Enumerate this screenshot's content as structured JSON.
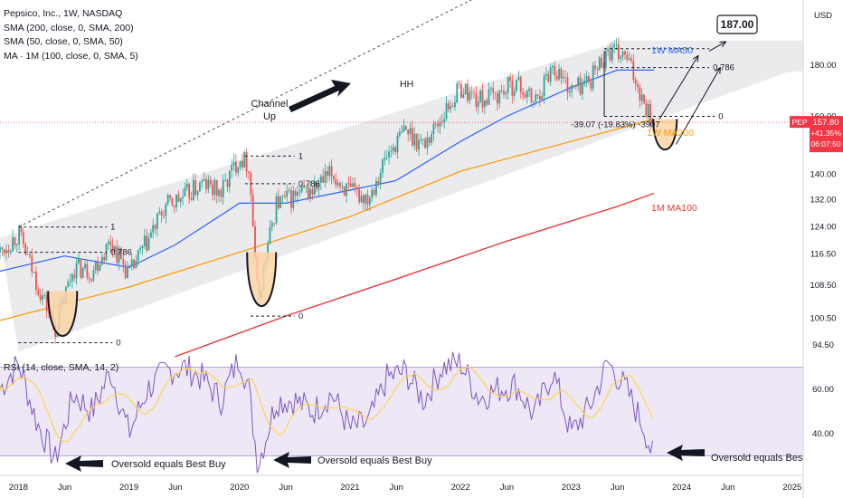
{
  "header": {
    "title": "Pepsico, Inc., 1W, NASDAQ",
    "indicators": [
      "SMA (200, close, 0, SMA, 200)",
      "SMA (50, close, 0, SMA, 50)",
      "MA · 1M (100, close, 0, SMA, 5)"
    ],
    "rsi_title": "RSI (14, close, SMA, 14, 2)"
  },
  "colors": {
    "candle_up": "#26a69a",
    "candle_down": "#ef5350",
    "sma50": "#2962ff",
    "sma200": "#ff9800",
    "ma100_1m": "#e53935",
    "channel_fill": "#e8e8ea",
    "rsi_line": "#7e57c2",
    "rsi_band": "#ede7f6",
    "rsi_sma": "#ffd54f",
    "price_badge": "#f23645",
    "bubble": "#fbd3a6"
  },
  "axis": {
    "currency": "USD",
    "price_ticks": [
      "94.50",
      "100.50",
      "108.50",
      "116.50",
      "124.00",
      "132.00",
      "140.00",
      "150.00",
      "160.00",
      "180.00"
    ],
    "rsi_ticks": [
      "40.00",
      "60.00"
    ],
    "time_ticks": [
      "2018",
      "Jun",
      "2019",
      "Jun",
      "2020",
      "Jun",
      "2021",
      "Jun",
      "2022",
      "Jun",
      "2023",
      "Jun",
      "2024",
      "Jun",
      "2025"
    ]
  },
  "price_badge": {
    "symbol": "PEP",
    "price": "157.80",
    "change": "+41.35%",
    "countdown": "06:07:50"
  },
  "annotations": {
    "channel": [
      "Channel",
      "Up"
    ],
    "hh": "HH",
    "target_box": "187.00",
    "ma50_label": "1W MA50",
    "ma200_label": "1W MA200",
    "ma100_label": "1M MA100",
    "drop_label": "-39.07 (-19.83%) -3907",
    "fib_one": "1",
    "fib_zero": "0",
    "fib_786": "0.786",
    "oversold": "Oversold equals Best Buy"
  },
  "chart_data": {
    "type": "candlestick",
    "title": "Pepsico, Inc., 1W, NASDAQ",
    "ylabel": "USD",
    "ylim": [
      92,
      190
    ],
    "x_range": [
      "2017-11",
      "2025-02"
    ],
    "y_scale": "log",
    "grid": false,
    "price_series_monthly": {
      "x": [
        "2017-11",
        "2018-01",
        "2018-03",
        "2018-05",
        "2018-07",
        "2018-09",
        "2018-11",
        "2019-01",
        "2019-03",
        "2019-05",
        "2019-07",
        "2019-09",
        "2019-11",
        "2020-01",
        "2020-02",
        "2020-03",
        "2020-05",
        "2020-07",
        "2020-09",
        "2020-11",
        "2021-01",
        "2021-03",
        "2021-05",
        "2021-07",
        "2021-09",
        "2021-11",
        "2022-01",
        "2022-03",
        "2022-05",
        "2022-07",
        "2022-09",
        "2022-11",
        "2023-01",
        "2023-03",
        "2023-05",
        "2023-07",
        "2023-09",
        "2023-10"
      ],
      "close": [
        117,
        122,
        109,
        98,
        113,
        112,
        120,
        111,
        120,
        130,
        133,
        137,
        134,
        146,
        143,
        104,
        131,
        133,
        135,
        140,
        134,
        133,
        146,
        155,
        150,
        160,
        171,
        166,
        168,
        173,
        165,
        180,
        170,
        174,
        186,
        183,
        165,
        157.8
      ]
    },
    "series": [
      {
        "name": "SMA (200, close, 0, SMA, 200)",
        "x": [
          "2017-11",
          "2019-01",
          "2020-01",
          "2021-01",
          "2022-01",
          "2023-01",
          "2023-10"
        ],
        "values": [
          100,
          108,
          117,
          127,
          141,
          151,
          159
        ]
      },
      {
        "name": "SMA (50, close, 0, SMA, 50)",
        "x": [
          "2017-11",
          "2018-06",
          "2019-01",
          "2019-06",
          "2020-01",
          "2020-06",
          "2021-01",
          "2021-06",
          "2022-01",
          "2022-06",
          "2023-01",
          "2023-06",
          "2023-10"
        ],
        "values": [
          112,
          116,
          113,
          119,
          131,
          131,
          135,
          138,
          151,
          160,
          171,
          178,
          178
        ]
      },
      {
        "name": "MA · 1M (100, close, 0, SMA, 5)",
        "x": [
          "2019-06",
          "2020-06",
          "2021-06",
          "2022-06",
          "2023-06",
          "2023-10"
        ],
        "values": [
          92,
          101,
          110,
          120,
          130,
          134
        ]
      }
    ],
    "levels": {
      "target": 187.0,
      "drop_points": -39.07,
      "drop_percent": -19.83
    },
    "rsi": {
      "title": "RSI (14, close, SMA, 14, 2)",
      "ylim": [
        22,
        82
      ],
      "x": [
        "2017-11",
        "2018-01",
        "2018-03",
        "2018-05",
        "2018-07",
        "2018-09",
        "2018-11",
        "2019-01",
        "2019-03",
        "2019-05",
        "2019-07",
        "2019-09",
        "2019-11",
        "2020-01",
        "2020-02",
        "2020-03",
        "2020-05",
        "2020-07",
        "2020-09",
        "2020-11",
        "2021-01",
        "2021-03",
        "2021-05",
        "2021-07",
        "2021-09",
        "2021-11",
        "2022-01",
        "2022-03",
        "2022-05",
        "2022-07",
        "2022-09",
        "2022-11",
        "2023-01",
        "2023-03",
        "2023-05",
        "2023-07",
        "2023-09",
        "2023-10"
      ],
      "values": [
        60,
        72,
        45,
        28,
        58,
        50,
        68,
        40,
        60,
        68,
        70,
        65,
        55,
        75,
        60,
        26,
        55,
        55,
        50,
        58,
        42,
        45,
        65,
        68,
        55,
        70,
        72,
        56,
        60,
        62,
        48,
        68,
        40,
        52,
        72,
        60,
        42,
        28
      ],
      "band": [
        30,
        70
      ]
    }
  }
}
